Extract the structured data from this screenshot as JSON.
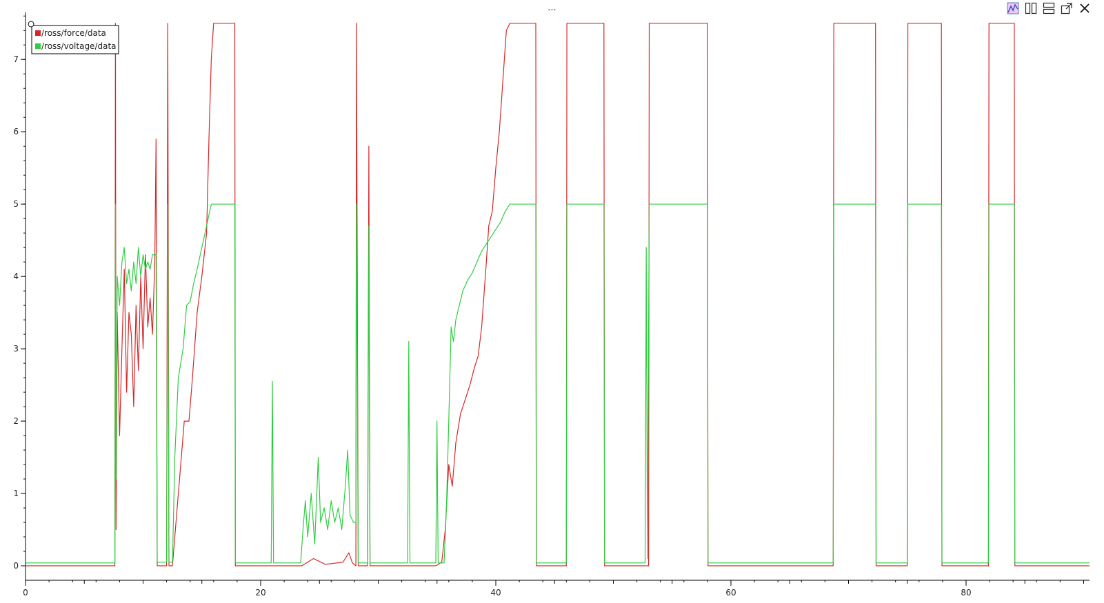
{
  "window": {
    "title": "..."
  },
  "toolbar": {
    "buttons": [
      {
        "name": "plot-options-icon"
      },
      {
        "name": "split-horizontal-icon"
      },
      {
        "name": "split-vertical-icon"
      },
      {
        "name": "undock-icon"
      },
      {
        "name": "close-icon"
      }
    ]
  },
  "chart_data": {
    "type": "line",
    "title": "",
    "xlabel": "",
    "ylabel": "",
    "xlim": [
      0,
      90.5
    ],
    "ylim": [
      -0.2,
      7.65
    ],
    "x_ticks": [
      0,
      20,
      40,
      60,
      80
    ],
    "x_tick_labels": [
      "0",
      "20",
      "40",
      "60",
      "80"
    ],
    "y_ticks": [
      0,
      1,
      2,
      3,
      4,
      5,
      6,
      7
    ],
    "y_tick_labels": [
      "0",
      "1",
      "2",
      "3",
      "4",
      "5",
      "6",
      "7"
    ],
    "grid": false,
    "legend_position": "top-left",
    "series": [
      {
        "name": "/ross/force/data",
        "color": "#d62728",
        "points": [
          [
            0,
            0
          ],
          [
            7.6,
            0
          ],
          [
            7.65,
            7.5
          ],
          [
            7.7,
            0.5
          ],
          [
            7.8,
            3.5
          ],
          [
            8.0,
            1.8
          ],
          [
            8.2,
            3.0
          ],
          [
            8.4,
            4.1
          ],
          [
            8.6,
            2.4
          ],
          [
            8.8,
            3.5
          ],
          [
            9.0,
            3.2
          ],
          [
            9.2,
            2.2
          ],
          [
            9.4,
            3.6
          ],
          [
            9.6,
            2.7
          ],
          [
            9.8,
            4.0
          ],
          [
            10.0,
            3.0
          ],
          [
            10.2,
            4.3
          ],
          [
            10.4,
            3.3
          ],
          [
            10.6,
            3.7
          ],
          [
            10.8,
            3.2
          ],
          [
            11.0,
            4.2
          ],
          [
            11.1,
            5.9
          ],
          [
            11.2,
            0
          ],
          [
            12.0,
            0
          ],
          [
            12.1,
            7.5
          ],
          [
            12.2,
            0
          ],
          [
            12.5,
            0
          ],
          [
            12.8,
            0.6
          ],
          [
            13.2,
            1.4
          ],
          [
            13.5,
            2.0
          ],
          [
            13.9,
            2.0
          ],
          [
            14.2,
            2.6
          ],
          [
            14.6,
            3.5
          ],
          [
            15.0,
            4.0
          ],
          [
            15.4,
            4.6
          ],
          [
            15.6,
            5.9
          ],
          [
            15.8,
            7.0
          ],
          [
            16.0,
            7.5
          ],
          [
            17.8,
            7.5
          ],
          [
            17.85,
            0
          ],
          [
            21.0,
            0
          ],
          [
            23.5,
            0
          ],
          [
            24.0,
            0.05
          ],
          [
            24.5,
            0.1
          ],
          [
            25.5,
            0.02
          ],
          [
            27.0,
            0.05
          ],
          [
            27.5,
            0.18
          ],
          [
            27.8,
            0.04
          ],
          [
            28.1,
            0
          ],
          [
            28.15,
            7.5
          ],
          [
            28.3,
            0
          ],
          [
            29.1,
            0
          ],
          [
            29.2,
            5.8
          ],
          [
            29.3,
            0
          ],
          [
            34.9,
            0
          ],
          [
            35.4,
            0.05
          ],
          [
            35.7,
            0.5
          ],
          [
            36.0,
            1.4
          ],
          [
            36.3,
            1.1
          ],
          [
            36.6,
            1.7
          ],
          [
            37.0,
            2.1
          ],
          [
            37.4,
            2.3
          ],
          [
            37.8,
            2.5
          ],
          [
            38.2,
            2.75
          ],
          [
            38.5,
            2.9
          ],
          [
            38.8,
            3.3
          ],
          [
            39.2,
            4.2
          ],
          [
            39.4,
            4.7
          ],
          [
            39.7,
            4.9
          ],
          [
            40.0,
            5.5
          ],
          [
            40.3,
            6.0
          ],
          [
            40.6,
            6.7
          ],
          [
            40.9,
            7.4
          ],
          [
            41.2,
            7.5
          ],
          [
            43.4,
            7.5
          ],
          [
            43.45,
            0
          ],
          [
            46.0,
            0
          ],
          [
            46.05,
            7.5
          ],
          [
            49.2,
            7.5
          ],
          [
            49.25,
            0
          ],
          [
            53.0,
            0
          ],
          [
            53.05,
            7.5
          ],
          [
            58.0,
            7.5
          ],
          [
            58.05,
            0
          ],
          [
            68.7,
            0
          ],
          [
            68.75,
            7.5
          ],
          [
            72.3,
            7.5
          ],
          [
            72.35,
            0
          ],
          [
            75.0,
            0
          ],
          [
            75.05,
            7.5
          ],
          [
            77.9,
            7.5
          ],
          [
            77.95,
            0
          ],
          [
            81.9,
            0
          ],
          [
            81.95,
            7.5
          ],
          [
            84.1,
            7.5
          ],
          [
            84.15,
            0
          ],
          [
            90.5,
            0
          ]
        ]
      },
      {
        "name": "/ross/voltage/data",
        "color": "#2ecc40",
        "points": [
          [
            0,
            0.04
          ],
          [
            7.6,
            0.04
          ],
          [
            7.65,
            5.0
          ],
          [
            7.7,
            1.2
          ],
          [
            7.8,
            4.0
          ],
          [
            8.0,
            3.6
          ],
          [
            8.2,
            4.2
          ],
          [
            8.4,
            4.4
          ],
          [
            8.6,
            3.9
          ],
          [
            8.8,
            4.1
          ],
          [
            9.0,
            3.8
          ],
          [
            9.2,
            4.2
          ],
          [
            9.4,
            3.9
          ],
          [
            9.6,
            4.4
          ],
          [
            9.8,
            4.0
          ],
          [
            10.0,
            4.3
          ],
          [
            10.2,
            4.1
          ],
          [
            10.4,
            4.2
          ],
          [
            10.6,
            4.1
          ],
          [
            10.8,
            4.3
          ],
          [
            11.1,
            4.3
          ],
          [
            11.2,
            0.05
          ],
          [
            12.0,
            0.05
          ],
          [
            12.1,
            5.0
          ],
          [
            12.2,
            0.05
          ],
          [
            12.5,
            0.05
          ],
          [
            12.7,
            1.5
          ],
          [
            13.0,
            2.6
          ],
          [
            13.4,
            3.0
          ],
          [
            13.7,
            3.6
          ],
          [
            14.0,
            3.65
          ],
          [
            14.3,
            3.9
          ],
          [
            14.6,
            4.1
          ],
          [
            15.0,
            4.4
          ],
          [
            15.4,
            4.7
          ],
          [
            15.8,
            5.0
          ],
          [
            17.8,
            5.0
          ],
          [
            17.85,
            0.04
          ],
          [
            20.9,
            0.04
          ],
          [
            21.0,
            2.55
          ],
          [
            21.1,
            0.04
          ],
          [
            23.4,
            0.04
          ],
          [
            23.6,
            0.5
          ],
          [
            23.8,
            0.9
          ],
          [
            24.0,
            0.4
          ],
          [
            24.3,
            1.0
          ],
          [
            24.6,
            0.3
          ],
          [
            24.9,
            1.5
          ],
          [
            25.1,
            0.6
          ],
          [
            25.4,
            0.8
          ],
          [
            25.7,
            0.5
          ],
          [
            26.0,
            0.9
          ],
          [
            26.3,
            0.6
          ],
          [
            26.6,
            0.8
          ],
          [
            26.9,
            0.5
          ],
          [
            27.2,
            1.1
          ],
          [
            27.4,
            1.6
          ],
          [
            27.6,
            0.7
          ],
          [
            27.9,
            0.6
          ],
          [
            28.1,
            0.6
          ],
          [
            28.15,
            5.0
          ],
          [
            28.3,
            0.04
          ],
          [
            29.1,
            0.04
          ],
          [
            29.2,
            4.7
          ],
          [
            29.3,
            0.04
          ],
          [
            32.5,
            0.04
          ],
          [
            32.6,
            3.1
          ],
          [
            32.7,
            0.04
          ],
          [
            34.9,
            0.04
          ],
          [
            35.0,
            2.0
          ],
          [
            35.1,
            0.04
          ],
          [
            35.6,
            0.04
          ],
          [
            35.8,
            0.8
          ],
          [
            36.0,
            2.0
          ],
          [
            36.2,
            3.3
          ],
          [
            36.4,
            3.1
          ],
          [
            36.6,
            3.4
          ],
          [
            36.9,
            3.6
          ],
          [
            37.2,
            3.8
          ],
          [
            37.6,
            3.95
          ],
          [
            38.0,
            4.05
          ],
          [
            38.4,
            4.2
          ],
          [
            38.8,
            4.35
          ],
          [
            39.2,
            4.45
          ],
          [
            39.6,
            4.55
          ],
          [
            40.0,
            4.65
          ],
          [
            40.4,
            4.75
          ],
          [
            40.8,
            4.9
          ],
          [
            41.2,
            5.0
          ],
          [
            43.4,
            5.0
          ],
          [
            43.45,
            0.04
          ],
          [
            46.0,
            0.04
          ],
          [
            46.05,
            5.0
          ],
          [
            49.2,
            5.0
          ],
          [
            49.25,
            0.04
          ],
          [
            52.7,
            0.04
          ],
          [
            52.8,
            4.4
          ],
          [
            52.9,
            0.1
          ],
          [
            53.05,
            5.0
          ],
          [
            58.0,
            5.0
          ],
          [
            58.05,
            0.04
          ],
          [
            68.7,
            0.04
          ],
          [
            68.75,
            5.0
          ],
          [
            72.3,
            5.0
          ],
          [
            72.35,
            0.04
          ],
          [
            75.0,
            0.04
          ],
          [
            75.05,
            5.0
          ],
          [
            77.9,
            5.0
          ],
          [
            77.95,
            0.04
          ],
          [
            81.9,
            0.04
          ],
          [
            81.95,
            5.0
          ],
          [
            84.1,
            5.0
          ],
          [
            84.15,
            0.04
          ],
          [
            90.5,
            0.04
          ]
        ]
      }
    ]
  }
}
